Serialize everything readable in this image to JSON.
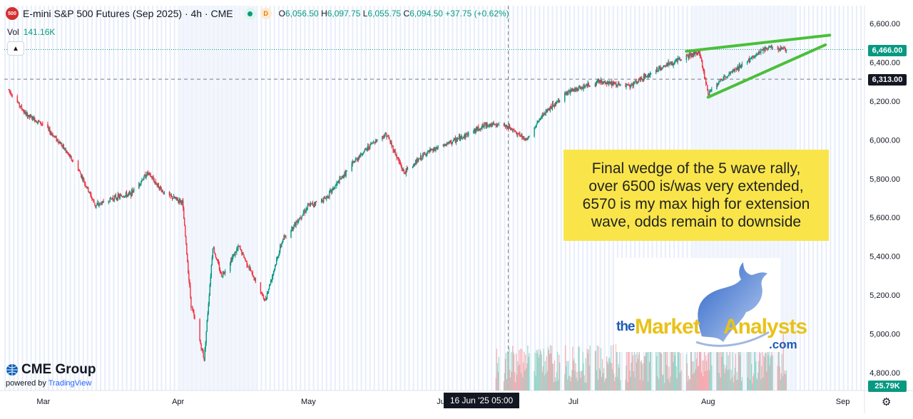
{
  "header": {
    "symbol_badge": "500",
    "title": "E-mini S&P 500 Futures (Sep 2025) · 4h · CME",
    "status_badge": "D",
    "ohlc": [
      {
        "k": "O",
        "v": "6,056.50"
      },
      {
        "k": "H",
        "v": "6,097.75"
      },
      {
        "k": "L",
        "v": "6,055.75"
      },
      {
        "k": "C",
        "v": "6,094.50"
      }
    ],
    "change": "+37.75 (+0.62%)"
  },
  "volume_label": "Vol",
  "volume_value": "141.16K",
  "annotation": {
    "lines": [
      "Final wedge of the 5 wave rally,",
      "over 6500 is/was very extended,",
      "6570 is my max high for extension",
      "wave, odds remain to downside"
    ]
  },
  "logo": {
    "the": "the",
    "market": "Market",
    "analysts": "Analysts",
    "com": ".com"
  },
  "footer": {
    "brand": "CME Group",
    "powered": "powered by",
    "tv": "TradingView"
  },
  "crosshair_label": "16 Jun '25  05:00",
  "price_tags": {
    "last": "6,466.00",
    "crosshair": "6,313.00",
    "volume": "25.79K"
  },
  "colors": {
    "up": "#089981",
    "down": "#f23645",
    "wedge": "#4bbf3a",
    "annotation": "#f9e54a",
    "tag": "#089981",
    "crosshair_tag": "#131722"
  },
  "chart_data": {
    "type": "candlestick",
    "timeframe": "4h",
    "ylim": [
      4700,
      6650
    ],
    "y_ticks": [
      "6,600.00",
      "6,400.00",
      "6,200.00",
      "6,000.00",
      "5,800.00",
      "5,600.00",
      "5,400.00",
      "5,200.00",
      "5,000.00",
      "4,800.00"
    ],
    "y_tick_values": [
      6600,
      6400,
      6200,
      6000,
      5800,
      5600,
      5400,
      5200,
      5000,
      4800
    ],
    "x_ticks": [
      "Mar",
      "Apr",
      "May",
      "Jun",
      "Jul",
      "Aug",
      "Sep"
    ],
    "x_tick_dates": [
      "2025-03-01",
      "2025-04-01",
      "2025-05-01",
      "2025-06-01",
      "2025-07-01",
      "2025-08-01",
      "2025-09-01"
    ],
    "x_range": [
      "2025-02-20",
      "2025-09-06"
    ],
    "price_path": [
      [
        "2025-02-21",
        6260
      ],
      [
        "2025-02-25",
        6130
      ],
      [
        "2025-03-01",
        6080
      ],
      [
        "2025-03-05",
        5980
      ],
      [
        "2025-03-09",
        5850
      ],
      [
        "2025-03-13",
        5660
      ],
      [
        "2025-03-17",
        5700
      ],
      [
        "2025-03-21",
        5720
      ],
      [
        "2025-03-25",
        5830
      ],
      [
        "2025-03-29",
        5720
      ],
      [
        "2025-04-02",
        5680
      ],
      [
        "2025-04-04",
        5150
      ],
      [
        "2025-04-07",
        4870
      ],
      [
        "2025-04-09",
        5450
      ],
      [
        "2025-04-11",
        5300
      ],
      [
        "2025-04-15",
        5450
      ],
      [
        "2025-04-21",
        5170
      ],
      [
        "2025-04-25",
        5480
      ],
      [
        "2025-05-01",
        5660
      ],
      [
        "2025-05-05",
        5700
      ],
      [
        "2025-05-12",
        5900
      ],
      [
        "2025-05-16",
        5990
      ],
      [
        "2025-05-19",
        6030
      ],
      [
        "2025-05-23",
        5830
      ],
      [
        "2025-05-28",
        5930
      ],
      [
        "2025-06-04",
        6000
      ],
      [
        "2025-06-11",
        6080
      ],
      [
        "2025-06-16",
        6070
      ],
      [
        "2025-06-20",
        6000
      ],
      [
        "2025-06-24",
        6130
      ],
      [
        "2025-06-30",
        6250
      ],
      [
        "2025-07-07",
        6300
      ],
      [
        "2025-07-14",
        6280
      ],
      [
        "2025-07-21",
        6370
      ],
      [
        "2025-07-28",
        6440
      ],
      [
        "2025-07-30",
        6450
      ],
      [
        "2025-08-01",
        6240
      ],
      [
        "2025-08-05",
        6330
      ],
      [
        "2025-08-11",
        6420
      ],
      [
        "2025-08-15",
        6480
      ],
      [
        "2025-08-19",
        6466
      ]
    ],
    "wedge_lines": [
      {
        "name": "upper",
        "from": [
          "2025-07-27",
          6457
        ],
        "to": [
          "2025-08-29",
          6540
        ]
      },
      {
        "name": "lower",
        "from": [
          "2025-08-01",
          6220
        ],
        "to": [
          "2025-08-28",
          6490
        ]
      }
    ],
    "horizontal_lines": [
      {
        "label": "last",
        "value": 6466,
        "style": "dotted"
      },
      {
        "label": "crosshair",
        "value": 6313,
        "style": "dashed"
      }
    ],
    "crosshair_date": "2025-06-16",
    "volume_scale_max": 100,
    "volume_last": 25.79
  }
}
